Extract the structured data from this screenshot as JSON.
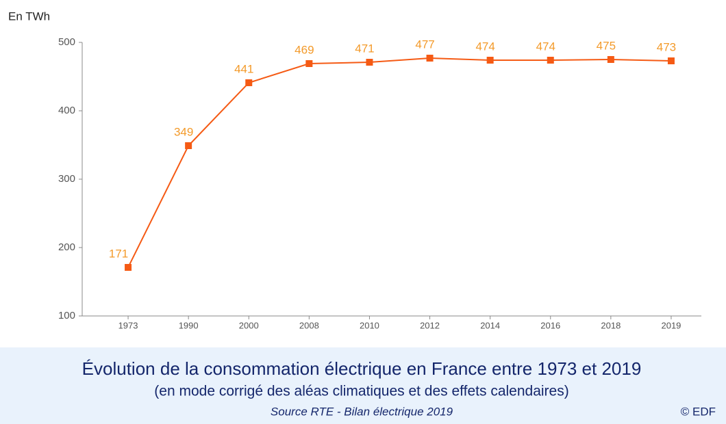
{
  "chart_data": {
    "type": "line",
    "title": "Évolution de la consommation électrique en France entre 1973 et 2019",
    "subtitle": "(en mode corrigé des aléas climatiques et des effets calendaires)",
    "source": "Source RTE - Bilan électrique 2019",
    "credit": "© EDF",
    "y_axis_label": "En TWh",
    "categories": [
      "1973",
      "1990",
      "2000",
      "2008",
      "2010",
      "2012",
      "2014",
      "2016",
      "2018",
      "2019"
    ],
    "values": [
      171,
      349,
      441,
      469,
      471,
      477,
      474,
      474,
      475,
      473
    ],
    "color": "#f55a14",
    "label_color": "#f39a2a",
    "ylim": [
      100,
      500
    ],
    "yticks": [
      100,
      200,
      300,
      400,
      500
    ]
  }
}
